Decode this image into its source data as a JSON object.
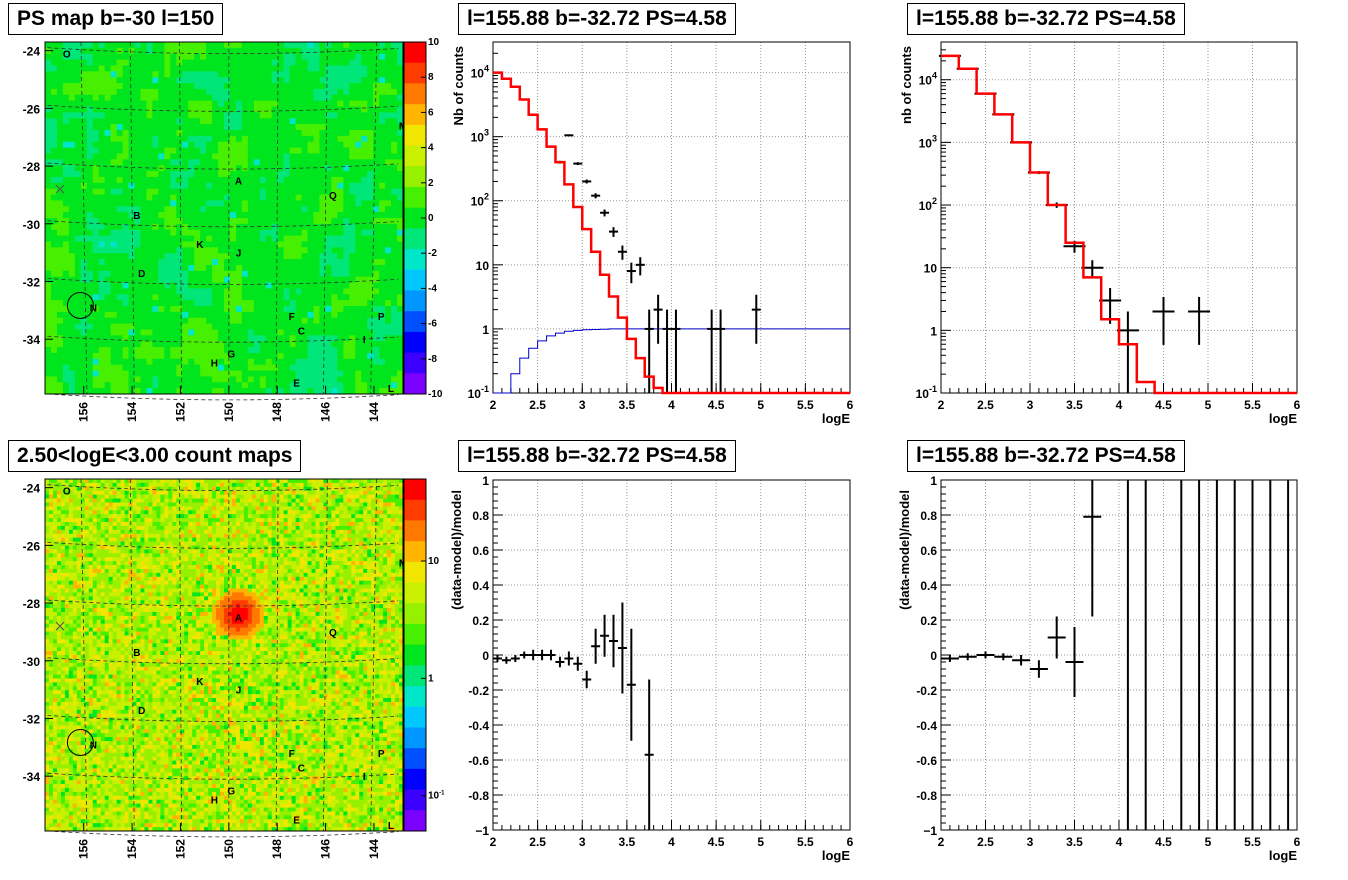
{
  "panels": {
    "map1_title": "PS map b=-30 l=150",
    "map2_title": "2.50<logE<3.00 count maps",
    "plot_title": "l=155.88 b=-32.72 PS=4.58"
  },
  "map": {
    "b_ticks": [
      "-24",
      "-26",
      "-28",
      "-30",
      "-32",
      "-34"
    ],
    "l_ticks": [
      "156",
      "154",
      "152",
      "150",
      "148",
      "146",
      "144"
    ],
    "sources": [
      {
        "name": "O",
        "l": 156.7,
        "b": -24.1
      },
      {
        "name": "M",
        "l": 142.8,
        "b": -26.6
      },
      {
        "name": "A",
        "l": 149.6,
        "b": -28.5
      },
      {
        "name": "Q",
        "l": 145.7,
        "b": -29.0
      },
      {
        "name": "B",
        "l": 153.8,
        "b": -29.7
      },
      {
        "name": "K",
        "l": 151.2,
        "b": -30.7
      },
      {
        "name": "J",
        "l": 149.6,
        "b": -31.0
      },
      {
        "name": "D",
        "l": 153.6,
        "b": -31.7
      },
      {
        "name": "N",
        "l": 155.6,
        "b": -32.9
      },
      {
        "name": "F",
        "l": 147.4,
        "b": -33.2
      },
      {
        "name": "P",
        "l": 143.7,
        "b": -33.2
      },
      {
        "name": "C",
        "l": 147.0,
        "b": -33.7
      },
      {
        "name": "I",
        "l": 144.4,
        "b": -34.0
      },
      {
        "name": "G",
        "l": 149.9,
        "b": -34.5
      },
      {
        "name": "H",
        "l": 150.6,
        "b": -34.8
      },
      {
        "name": "E",
        "l": 147.2,
        "b": -35.5
      },
      {
        "name": "L",
        "l": 143.3,
        "b": -35.7
      }
    ],
    "ps_scale": [
      "10",
      "8",
      "6",
      "4",
      "2",
      "0",
      "-2",
      "-4",
      "-6",
      "-8",
      "-10"
    ],
    "count_scale": {
      "ten": "10",
      "one": "1",
      "tenth_base": "10",
      "tenth_exp": "-1"
    },
    "colors": [
      "#7a00ff",
      "#3c00ff",
      "#0000ff",
      "#0050ff",
      "#0096ff",
      "#00c8ff",
      "#00e6c8",
      "#00e678",
      "#00e61e",
      "#46f000",
      "#96f000",
      "#c8f000",
      "#f0e600",
      "#ffb400",
      "#ff7800",
      "#ff3c00",
      "#ff0000"
    ]
  },
  "axes_text": {
    "logE": "logE",
    "nb_counts_mid": "Nb of counts",
    "nb_counts_right": "nb of counts",
    "residual": "(data-model)/model",
    "x_ticks": [
      "2",
      "2.5",
      "3",
      "3.5",
      "4",
      "4.5",
      "5",
      "5.5",
      "6"
    ],
    "y_log_ticks": [
      {
        "base": "10",
        "exp": "-1",
        "v": -1
      },
      {
        "base": "1",
        "exp": "",
        "v": 0
      },
      {
        "base": "10",
        "exp": "",
        "v": 1
      },
      {
        "base": "10",
        "exp": "2",
        "v": 2
      },
      {
        "base": "10",
        "exp": "3",
        "v": 3
      },
      {
        "base": "10",
        "exp": "4",
        "v": 4
      }
    ],
    "y_res_ticks": [
      "1",
      "0.8",
      "0.6",
      "0.4",
      "0.2",
      "0",
      "-0.2",
      "-0.4",
      "-0.6",
      "-0.8",
      "-1"
    ]
  },
  "chart_data": [
    {
      "type": "line",
      "name": "spectrum-fine",
      "xlabel": "logE",
      "ylabel": "Nb of counts",
      "xlim": [
        2,
        6
      ],
      "ylim": [
        0.1,
        30000
      ],
      "ylog": true,
      "grid": true,
      "model_steps": {
        "edges": [
          2.0,
          2.1,
          2.2,
          2.3,
          2.4,
          2.5,
          2.6,
          2.7,
          2.8,
          2.9,
          3.0,
          3.1,
          3.2,
          3.3,
          3.4,
          3.5,
          3.6,
          3.7,
          3.8,
          3.9,
          4.0,
          4.1,
          4.2,
          6.0
        ],
        "values": [
          10000,
          8000,
          6000,
          3800,
          2200,
          1300,
          700,
          400,
          180,
          80,
          36,
          16,
          7,
          3.2,
          1.5,
          0.7,
          0.35,
          0.18,
          0.12,
          0.1,
          0.1,
          0.1,
          0.1
        ]
      },
      "model_color": "#ff0000",
      "background_steps": {
        "edges": [
          2.0,
          2.1,
          2.2,
          2.3,
          2.4,
          2.5,
          2.6,
          2.7,
          2.8,
          2.9,
          3.0,
          3.1,
          3.2,
          3.3,
          3.4,
          3.5,
          3.6,
          6.0
        ],
        "values": [
          0.01,
          0.1,
          0.2,
          0.35,
          0.5,
          0.65,
          0.78,
          0.86,
          0.92,
          0.95,
          0.97,
          0.98,
          0.99,
          1,
          1,
          1,
          1
        ]
      },
      "background_color": "#0000cc",
      "data": [
        {
          "x": 2.05,
          "y": 10000
        },
        {
          "x": 2.15,
          "y": 8000
        },
        {
          "x": 2.25,
          "y": 6000
        },
        {
          "x": 2.35,
          "y": 3800
        },
        {
          "x": 2.45,
          "y": 2200
        },
        {
          "x": 2.55,
          "y": 1300
        },
        {
          "x": 2.65,
          "y": 700
        },
        {
          "x": 2.75,
          "y": 400
        },
        {
          "x": 2.85,
          "y": 1050
        },
        {
          "x": 2.95,
          "y": 380
        },
        {
          "x": 3.05,
          "y": 200
        },
        {
          "x": 3.15,
          "y": 120
        },
        {
          "x": 3.25,
          "y": 65
        },
        {
          "x": 3.35,
          "y": 33
        },
        {
          "x": 3.45,
          "y": 16
        },
        {
          "x": 3.55,
          "y": 8
        },
        {
          "x": 3.65,
          "y": 10
        },
        {
          "x": 3.75,
          "y": 1
        },
        {
          "x": 3.85,
          "y": 2
        },
        {
          "x": 3.95,
          "y": 1
        },
        {
          "x": 4.05,
          "y": 1
        },
        {
          "x": 4.45,
          "y": 1
        },
        {
          "x": 4.55,
          "y": 1
        },
        {
          "x": 4.95,
          "y": 2
        }
      ]
    },
    {
      "type": "line",
      "name": "spectrum-coarse",
      "xlabel": "logE",
      "ylabel": "nb of counts",
      "xlim": [
        2,
        6
      ],
      "ylim": [
        0.1,
        40000
      ],
      "ylog": true,
      "grid": true,
      "model_steps": {
        "edges": [
          2.0,
          2.2,
          2.4,
          2.6,
          2.8,
          3.0,
          3.2,
          3.4,
          3.6,
          3.8,
          4.0,
          4.2,
          4.4,
          6.0
        ],
        "values": [
          24000,
          15000,
          6000,
          2800,
          1000,
          330,
          100,
          25,
          7,
          1.5,
          0.6,
          0.15,
          0.1
        ]
      },
      "model_color": "#ff0000",
      "data": [
        {
          "x": 2.1,
          "y": 24000
        },
        {
          "x": 2.3,
          "y": 15000
        },
        {
          "x": 2.5,
          "y": 6000
        },
        {
          "x": 2.7,
          "y": 2800
        },
        {
          "x": 2.9,
          "y": 1000
        },
        {
          "x": 3.1,
          "y": 330
        },
        {
          "x": 3.3,
          "y": 100
        },
        {
          "x": 3.5,
          "y": 22
        },
        {
          "x": 3.7,
          "y": 10
        },
        {
          "x": 3.9,
          "y": 3
        },
        {
          "x": 4.1,
          "y": 1
        },
        {
          "x": 4.5,
          "y": 2
        },
        {
          "x": 4.9,
          "y": 2
        }
      ]
    },
    {
      "type": "scatter",
      "name": "residual-fine",
      "xlabel": "logE",
      "ylabel": "(data-model)/model",
      "xlim": [
        2,
        6
      ],
      "ylim": [
        -1,
        1
      ],
      "grid": true,
      "data": [
        {
          "x": 2.05,
          "y": -0.02,
          "e": 0.02
        },
        {
          "x": 2.15,
          "y": -0.03,
          "e": 0.02
        },
        {
          "x": 2.25,
          "y": -0.02,
          "e": 0.02
        },
        {
          "x": 2.35,
          "y": 0.0,
          "e": 0.02
        },
        {
          "x": 2.45,
          "y": 0.0,
          "e": 0.03
        },
        {
          "x": 2.55,
          "y": 0.0,
          "e": 0.03
        },
        {
          "x": 2.65,
          "y": 0.0,
          "e": 0.03
        },
        {
          "x": 2.75,
          "y": -0.04,
          "e": 0.03
        },
        {
          "x": 2.85,
          "y": -0.02,
          "e": 0.04
        },
        {
          "x": 2.95,
          "y": -0.05,
          "e": 0.04
        },
        {
          "x": 3.05,
          "y": -0.14,
          "e": 0.05
        },
        {
          "x": 3.15,
          "y": 0.05,
          "e": 0.1
        },
        {
          "x": 3.25,
          "y": 0.11,
          "e": 0.12
        },
        {
          "x": 3.35,
          "y": 0.08,
          "e": 0.15
        },
        {
          "x": 3.45,
          "y": 0.04,
          "e": 0.26
        },
        {
          "x": 3.55,
          "y": -0.17,
          "e": 0.32
        },
        {
          "x": 3.75,
          "y": -0.57,
          "e": 0.43
        }
      ]
    },
    {
      "type": "scatter",
      "name": "residual-coarse",
      "xlabel": "logE",
      "ylabel": "(data-model)/model",
      "xlim": [
        2,
        6
      ],
      "ylim": [
        -1,
        1
      ],
      "grid": true,
      "data": [
        {
          "x": 2.1,
          "y": -0.02,
          "e": 0.02
        },
        {
          "x": 2.3,
          "y": -0.01,
          "e": 0.02
        },
        {
          "x": 2.5,
          "y": 0.0,
          "e": 0.02
        },
        {
          "x": 2.7,
          "y": -0.01,
          "e": 0.02
        },
        {
          "x": 2.9,
          "y": -0.03,
          "e": 0.03
        },
        {
          "x": 3.1,
          "y": -0.08,
          "e": 0.05
        },
        {
          "x": 3.3,
          "y": 0.1,
          "e": 0.12
        },
        {
          "x": 3.5,
          "y": -0.04,
          "e": 0.2
        },
        {
          "x": 3.7,
          "y": 0.79,
          "e": 0.57
        },
        {
          "x": 4.1,
          "y": 0.8,
          "e": 2.5
        },
        {
          "x": 4.3,
          "y": 0.0,
          "e": 2.5
        },
        {
          "x": 4.7,
          "y": 0.0,
          "e": 2.5
        },
        {
          "x": 4.9,
          "y": 0.0,
          "e": 2.5
        },
        {
          "x": 5.1,
          "y": 0.0,
          "e": 2.5
        },
        {
          "x": 5.3,
          "y": 0.0,
          "e": 2.5
        },
        {
          "x": 5.5,
          "y": 0.0,
          "e": 2.5
        },
        {
          "x": 5.7,
          "y": 0.0,
          "e": 2.5
        },
        {
          "x": 5.9,
          "y": 0.0,
          "e": 2.5
        }
      ]
    },
    {
      "type": "heatmap",
      "name": "ps-map",
      "title": "PS map b=-30 l=150",
      "xlabel": "",
      "ylabel": "",
      "xlim": [
        157.6,
        142.8
      ],
      "ylim": [
        -35.9,
        -23.7
      ],
      "zlim": [
        -10,
        10
      ],
      "peak": null
    },
    {
      "type": "heatmap",
      "name": "count-map",
      "title": "2.50<logE<3.00 count maps",
      "xlabel": "",
      "ylabel": "",
      "xlim": [
        157.6,
        142.8
      ],
      "ylim": [
        -35.9,
        -23.7
      ],
      "zlim": [
        0.05,
        50
      ],
      "zlog": true,
      "peak": {
        "l": 149.6,
        "b": -28.4
      }
    }
  ]
}
